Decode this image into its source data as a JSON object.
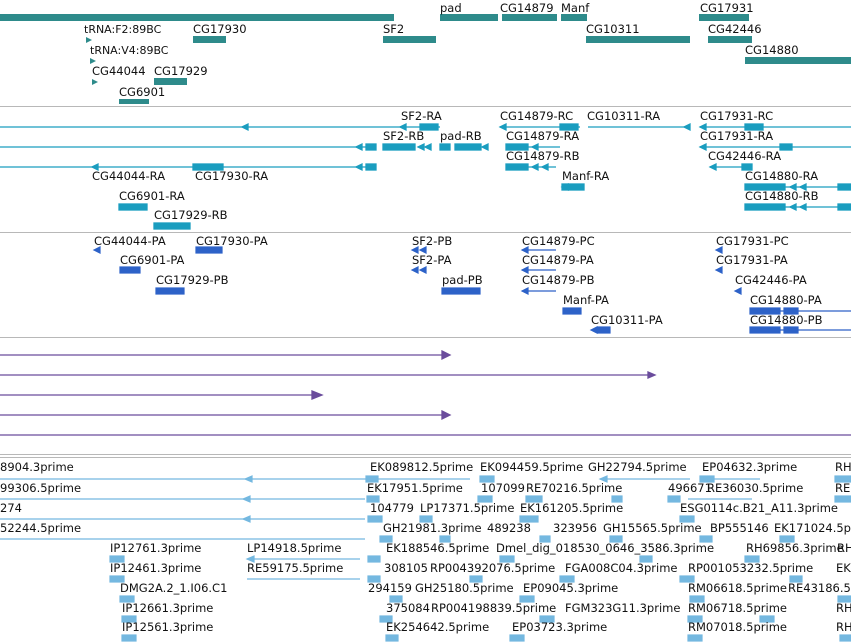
{
  "colors": {
    "gene": "#2e8b8b",
    "transcript": "#1a9dbf",
    "protein": "#2d62c8",
    "other": "#6a4c9c",
    "est": "#74b8e0",
    "separator": "#b8b8b8"
  },
  "gene_track": [
    {
      "label": "pad"
    },
    {
      "label": "CG14879"
    },
    {
      "label": "Manf"
    },
    {
      "label": "CG17931"
    },
    {
      "label": "tRNA:F2:89BC"
    },
    {
      "label": "CG17930"
    },
    {
      "label": "SF2"
    },
    {
      "label": "CG10311"
    },
    {
      "label": "CG42446"
    },
    {
      "label": "tRNA:V4:89BC"
    },
    {
      "label": "CG14880"
    },
    {
      "label": "CG44044"
    },
    {
      "label": "CG17929"
    },
    {
      "label": "CG6901"
    }
  ],
  "transcript_track": [
    {
      "label": "SF2-RA"
    },
    {
      "label": "CG14879-RC"
    },
    {
      "label": "CG10311-RA"
    },
    {
      "label": "CG17931-RC"
    },
    {
      "label": "SF2-RB"
    },
    {
      "label": "pad-RB"
    },
    {
      "label": "CG14879-RA"
    },
    {
      "label": "CG17931-RA"
    },
    {
      "label": "CG14879-RB"
    },
    {
      "label": "CG42446-RA"
    },
    {
      "label": "CG44044-RA"
    },
    {
      "label": "CG17930-RA"
    },
    {
      "label": "Manf-RA"
    },
    {
      "label": "CG14880-RA"
    },
    {
      "label": "CG6901-RA"
    },
    {
      "label": "CG14880-RB"
    },
    {
      "label": "CG17929-RB"
    }
  ],
  "protein_track": [
    {
      "label": "CG44044-PA"
    },
    {
      "label": "CG17930-PA"
    },
    {
      "label": "SF2-PB"
    },
    {
      "label": "CG14879-PC"
    },
    {
      "label": "CG17931-PC"
    },
    {
      "label": "CG6901-PA"
    },
    {
      "label": "SF2-PA"
    },
    {
      "label": "CG14879-PA"
    },
    {
      "label": "CG17931-PA"
    },
    {
      "label": "CG17929-PB"
    },
    {
      "label": "pad-PB"
    },
    {
      "label": "CG14879-PB"
    },
    {
      "label": "CG42446-PA"
    },
    {
      "label": "Manf-PA"
    },
    {
      "label": "CG14880-PA"
    },
    {
      "label": "CG10311-PA"
    },
    {
      "label": "CG14880-PB"
    }
  ],
  "est_track": [
    {
      "label": "8904.3prime"
    },
    {
      "label": "EK089812.5prime"
    },
    {
      "label": "EK094459.5prime"
    },
    {
      "label": "GH22794.5prime"
    },
    {
      "label": "EP04632.3prime"
    },
    {
      "label": "RH"
    },
    {
      "label": "99306.5prime"
    },
    {
      "label": "EK17951.5prime"
    },
    {
      "label": "107099"
    },
    {
      "label": "RE70216.5prime"
    },
    {
      "label": "496671"
    },
    {
      "label": "RE36030.5prime"
    },
    {
      "label": "RE"
    },
    {
      "label": "274"
    },
    {
      "label": "104779"
    },
    {
      "label": "LP17371.5prime"
    },
    {
      "label": "EK161205.5prime"
    },
    {
      "label": "ESG0114c.B21_A11.3prime"
    },
    {
      "label": "52244.5prime"
    },
    {
      "label": "GH21981.3prime"
    },
    {
      "label": "489238"
    },
    {
      "label": "323956"
    },
    {
      "label": "GH15565.5prime"
    },
    {
      "label": "BP555146"
    },
    {
      "label": "EK171024.5p"
    },
    {
      "label": "IP12761.3prime"
    },
    {
      "label": "LP14918.5prime"
    },
    {
      "label": "EK188546.5prime"
    },
    {
      "label": "Dmel_dig_018530_0646_3586.3prime"
    },
    {
      "label": "RH69856.3prime"
    },
    {
      "label": "RH"
    },
    {
      "label": "IP12461.3prime"
    },
    {
      "label": "RE59175.5prime"
    },
    {
      "label": "308105"
    },
    {
      "label": "RP004392076.5prime"
    },
    {
      "label": "FGA008C04.3prime"
    },
    {
      "label": "RP001053232.5prime"
    },
    {
      "label": "EK"
    },
    {
      "label": "DMG2A.2_1.I06.C1"
    },
    {
      "label": "294159"
    },
    {
      "label": "GH25180.5prime"
    },
    {
      "label": "EP09045.3prime"
    },
    {
      "label": "RM06618.5prime"
    },
    {
      "label": "RE43186.5"
    },
    {
      "label": "IP12661.3prime"
    },
    {
      "label": "375084"
    },
    {
      "label": "RP004198839.5prime"
    },
    {
      "label": "FGM323G11.3prime"
    },
    {
      "label": "RM06718.5prime"
    },
    {
      "label": "RH"
    },
    {
      "label": "IP12561.3prime"
    },
    {
      "label": "EK254642.5prime"
    },
    {
      "label": "EP03723.3prime"
    },
    {
      "label": "RM07018.5prime"
    },
    {
      "label": "RH"
    }
  ]
}
